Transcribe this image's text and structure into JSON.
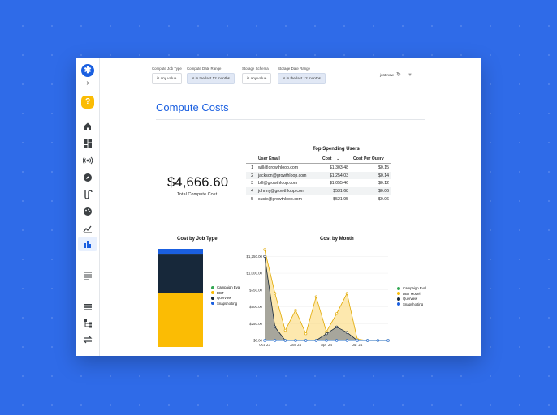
{
  "filters": [
    {
      "label": "Compute Job Type",
      "value": "is any value",
      "selected": false
    },
    {
      "label": "Compute Date Range",
      "value": "is in the last 12 months",
      "selected": true
    },
    {
      "label": "Storage Schema",
      "value": "is any value",
      "selected": false
    },
    {
      "label": "Storage Date Range",
      "value": "is in the last 12 months",
      "selected": true
    }
  ],
  "toolbar": {
    "updated": "just now"
  },
  "page": {
    "title": "Compute Costs"
  },
  "kpi": {
    "value": "$4,666.60",
    "label": "Total Compute Cost"
  },
  "top_users": {
    "title": "Top Spending Users",
    "columns": [
      "User Email",
      "Cost",
      "Cost Per Query"
    ],
    "rows": [
      {
        "idx": "1",
        "email": "will@growthloop.com",
        "cost": "$1,303.48",
        "cpq": "$0.15"
      },
      {
        "idx": "2",
        "email": "jackson@growthloop.com",
        "cost": "$1,254.03",
        "cpq": "$0.14"
      },
      {
        "idx": "3",
        "email": "bill@growthloop.com",
        "cost": "$1,055.46",
        "cpq": "$0.12"
      },
      {
        "idx": "4",
        "email": "johnny@growthloop.com",
        "cost": "$531.68",
        "cpq": "$0.06"
      },
      {
        "idx": "5",
        "email": "susie@growthloop.com",
        "cost": "$521.95",
        "cpq": "$0.06"
      }
    ]
  },
  "colors": {
    "accent": "#1a5fe0",
    "campaign": "#34a853",
    "dbt": "#fbbc04",
    "querview": "#17283a",
    "snapshotting": "#1a5fe0"
  },
  "chart_data": [
    {
      "type": "bar",
      "title": "Cost by Job Type",
      "categories": [
        ""
      ],
      "stacked": true,
      "series": [
        {
          "name": "Campaign Eval",
          "values": [
            0
          ],
          "color": "#34a853"
        },
        {
          "name": "DBT",
          "values": [
            55
          ],
          "color": "#fbbc04"
        },
        {
          "name": "Querview",
          "values": [
            40
          ],
          "color": "#17283a"
        },
        {
          "name": "Snapshotting",
          "values": [
            5
          ],
          "color": "#1a5fe0"
        }
      ],
      "legend": "right"
    },
    {
      "type": "area",
      "title": "Cost by Month",
      "x_ticks": [
        "Oct '23",
        "Jan '24",
        "Apr '24",
        "Jul '24"
      ],
      "y_ticks": [
        "$0.00",
        "$250.00",
        "$500.00",
        "$750.00",
        "$1,000.00",
        "$1,250.00"
      ],
      "ylim": [
        0,
        1350
      ],
      "x": [
        "Oct '23",
        "",
        "",
        "Jan '24",
        "",
        "",
        "Apr '24",
        "",
        "",
        "Jul '24",
        "",
        "",
        ""
      ],
      "series": [
        {
          "name": "Campaign Eval",
          "color": "#34a853",
          "values": [
            0,
            0,
            0,
            0,
            0,
            0,
            0,
            0,
            0,
            0,
            0,
            0,
            0
          ]
        },
        {
          "name": "DBT Model",
          "color": "#fbbc04",
          "values": [
            1350,
            700,
            150,
            450,
            100,
            650,
            130,
            400,
            700,
            20,
            0,
            0,
            0
          ]
        },
        {
          "name": "Querview",
          "color": "#17283a",
          "values": [
            1250,
            200,
            0,
            0,
            0,
            0,
            100,
            200,
            120,
            0,
            0,
            0,
            0
          ]
        },
        {
          "name": "Snapshotting",
          "color": "#1a5fe0",
          "values": [
            0,
            0,
            0,
            0,
            0,
            0,
            0,
            0,
            0,
            0,
            0,
            0,
            0
          ]
        }
      ],
      "legend": "right"
    }
  ]
}
